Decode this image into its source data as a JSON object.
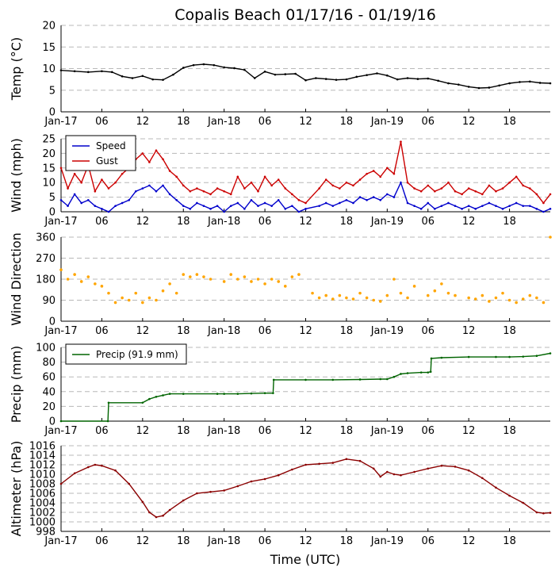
{
  "chart_data": {
    "title": "Copalis Beach 01/17/16 - 01/19/16",
    "xlabel": "Time (UTC)",
    "x_ticks": [
      "Jan-17",
      "06",
      "12",
      "18",
      "Jan-18",
      "06",
      "12",
      "18",
      "Jan-19",
      "06",
      "12",
      "18"
    ],
    "x_tick_hours": [
      0,
      6,
      12,
      18,
      24,
      30,
      36,
      42,
      48,
      54,
      60,
      66
    ],
    "x_range_hours": [
      0,
      72
    ],
    "panels": [
      {
        "id": "temp",
        "type": "line",
        "ylabel": "Temp (°C)",
        "ylim": [
          0,
          20
        ],
        "yticks": [
          0,
          5,
          10,
          15,
          20
        ],
        "grid": true,
        "series": [
          {
            "name": "Temp",
            "color": "#000000",
            "x": [
              0,
              2,
              4,
              6,
              7.5,
              9,
              10.5,
              12,
              13.5,
              15,
              16.5,
              18,
              19.5,
              21,
              22.5,
              24,
              25.5,
              27,
              28.5,
              30,
              31.5,
              33,
              34.5,
              36,
              37.5,
              39,
              40.5,
              42,
              43.5,
              45,
              46.5,
              48,
              49.5,
              51,
              52.5,
              54,
              55.5,
              57,
              58.5,
              60,
              61.5,
              63,
              64.5,
              66,
              67.5,
              69,
              70.5,
              72
            ],
            "y": [
              9.6,
              9.4,
              9.2,
              9.4,
              9.2,
              8.2,
              7.8,
              8.3,
              7.5,
              7.4,
              8.6,
              10.2,
              10.8,
              11.0,
              10.8,
              10.3,
              10.1,
              9.7,
              7.8,
              9.3,
              8.6,
              8.7,
              8.8,
              7.3,
              7.8,
              7.6,
              7.4,
              7.5,
              8.1,
              8.5,
              8.9,
              8.4,
              7.5,
              7.8,
              7.6,
              7.7,
              7.2,
              6.6,
              6.3,
              5.8,
              5.5,
              5.6,
              6.1,
              6.6,
              6.9,
              7.0,
              6.7,
              6.6
            ]
          }
        ]
      },
      {
        "id": "wind",
        "type": "line",
        "ylabel": "Wind (mph)",
        "ylim": [
          0,
          25
        ],
        "yticks": [
          0,
          5,
          10,
          15,
          20,
          25
        ],
        "grid": true,
        "legend": "top-left",
        "series": [
          {
            "name": "Speed",
            "color": "#0000cc",
            "x": [
              0,
              1,
              2,
              3,
              4,
              5,
              6,
              7,
              8,
              9,
              10,
              11,
              12,
              13,
              14,
              15,
              16,
              17,
              18,
              19,
              20,
              21,
              22,
              23,
              24,
              25,
              26,
              27,
              28,
              29,
              30,
              31,
              32,
              33,
              34,
              35,
              36,
              38,
              39,
              40,
              41,
              42,
              43,
              44,
              45,
              46,
              47,
              48,
              49,
              50,
              51,
              52,
              53,
              54,
              55,
              56,
              57,
              58,
              59,
              60,
              61,
              62,
              63,
              64,
              65,
              66,
              67,
              68,
              69,
              70,
              71,
              72
            ],
            "y": [
              4,
              2,
              6,
              3,
              4,
              2,
              1,
              0,
              2,
              3,
              4,
              7,
              8,
              9,
              7,
              9,
              6,
              4,
              2,
              1,
              3,
              2,
              1,
              2,
              0,
              2,
              3,
              1,
              4,
              2,
              3,
              2,
              4,
              1,
              2,
              0,
              1,
              2,
              3,
              2,
              3,
              4,
              3,
              5,
              4,
              5,
              4,
              6,
              5,
              10,
              3,
              2,
              1,
              3,
              1,
              2,
              3,
              2,
              1,
              2,
              1,
              2,
              3,
              2,
              1,
              2,
              3,
              2,
              2,
              1,
              0,
              1
            ]
          },
          {
            "name": "Gust",
            "color": "#cc0000",
            "x": [
              0,
              1,
              2,
              3,
              4,
              5,
              6,
              7,
              8,
              9,
              10,
              11,
              12,
              13,
              14,
              15,
              16,
              17,
              18,
              19,
              20,
              21,
              22,
              23,
              24,
              25,
              26,
              27,
              28,
              29,
              30,
              31,
              32,
              33,
              34,
              35,
              36,
              38,
              39,
              40,
              41,
              42,
              43,
              44,
              45,
              46,
              47,
              48,
              49,
              50,
              51,
              52,
              53,
              54,
              55,
              56,
              57,
              58,
              59,
              60,
              61,
              62,
              63,
              64,
              65,
              66,
              67,
              68,
              69,
              70,
              71,
              72
            ],
            "y": [
              15,
              8,
              13,
              10,
              16,
              7,
              11,
              8,
              10,
              13,
              15,
              18,
              20,
              17,
              21,
              18,
              14,
              12,
              9,
              7,
              8,
              7,
              6,
              8,
              7,
              6,
              12,
              8,
              10,
              7,
              12,
              9,
              11,
              8,
              6,
              4,
              3,
              8,
              11,
              9,
              8,
              10,
              9,
              11,
              13,
              14,
              12,
              15,
              13,
              24,
              10,
              8,
              7,
              9,
              7,
              8,
              10,
              7,
              6,
              8,
              7,
              6,
              9,
              7,
              8,
              10,
              12,
              9,
              8,
              6,
              3,
              6
            ]
          }
        ]
      },
      {
        "id": "wdir",
        "type": "scatter",
        "ylabel": "Wind Direction",
        "ylim": [
          0,
          360
        ],
        "yticks": [
          0,
          90,
          180,
          270,
          360
        ],
        "grid": true,
        "series": [
          {
            "name": "Direction",
            "color": "#ffa500",
            "x": [
              0,
              1,
              2,
              3,
              4,
              5,
              6,
              7,
              8,
              9,
              10,
              11,
              12,
              13,
              14,
              15,
              16,
              17,
              18,
              19,
              20,
              21,
              22,
              24,
              25,
              26,
              27,
              28,
              29,
              30,
              31,
              32,
              33,
              34,
              35,
              37,
              38,
              39,
              40,
              41,
              42,
              43,
              44,
              45,
              46,
              47,
              48,
              49,
              50,
              51,
              52,
              54,
              55,
              56,
              57,
              58,
              60,
              61,
              62,
              63,
              64,
              65,
              66,
              67,
              68,
              69,
              70,
              71,
              72
            ],
            "y": [
              220,
              180,
              200,
              170,
              190,
              160,
              150,
              120,
              80,
              100,
              90,
              120,
              80,
              100,
              90,
              130,
              160,
              120,
              200,
              190,
              200,
              190,
              180,
              170,
              200,
              180,
              190,
              170,
              180,
              160,
              180,
              170,
              150,
              190,
              200,
              120,
              100,
              110,
              95,
              110,
              100,
              95,
              120,
              100,
              90,
              85,
              110,
              180,
              120,
              100,
              150,
              110,
              130,
              160,
              120,
              110,
              100,
              95,
              110,
              85,
              100,
              120,
              90,
              80,
              95,
              110,
              100,
              80,
              360
            ]
          }
        ]
      },
      {
        "id": "precip",
        "type": "line",
        "ylabel": "Precip (mm)",
        "ylim": [
          0,
          100
        ],
        "yticks": [
          0,
          20,
          40,
          60,
          80,
          100
        ],
        "grid": true,
        "legend": "top-left",
        "series": [
          {
            "name": "Precip (91.9 mm)",
            "color": "#006400",
            "x": [
              0,
              6.9,
              7.0,
              12,
              13,
              14,
              15,
              16,
              18,
              23,
              24,
              26,
              28,
              30,
              31.2,
              31.3,
              36,
              40,
              44,
              47,
              48,
              49,
              50,
              51,
              53,
              54,
              54.4,
              54.5,
              56,
              60,
              64,
              66,
              68,
              70,
              72
            ],
            "y": [
              0,
              0,
              25,
              25,
              30,
              33,
              35,
              37,
              37,
              37,
              37,
              37,
              37.5,
              38,
              38,
              56,
              56,
              56,
              56.5,
              57,
              57,
              60,
              64,
              65,
              66,
              66,
              67,
              85,
              86,
              87,
              87,
              87,
              87.5,
              88.5,
              91.9
            ]
          }
        ]
      },
      {
        "id": "altimeter",
        "type": "line",
        "ylabel": "Altimeter (hPa)",
        "ylim": [
          998,
          1016
        ],
        "yticks": [
          998,
          1000,
          1002,
          1004,
          1006,
          1008,
          1010,
          1012,
          1014,
          1016
        ],
        "grid": true,
        "series": [
          {
            "name": "Altimeter",
            "color": "#8b0000",
            "x": [
              0,
              2,
              4,
              5,
              6,
              8,
              10,
              12,
              13,
              14,
              15,
              16,
              18,
              20,
              22,
              24,
              26,
              28,
              30,
              32,
              34,
              36,
              38,
              40,
              42,
              44,
              46,
              47,
              48,
              49,
              50,
              52,
              54,
              56,
              58,
              60,
              62,
              64,
              66,
              68,
              70,
              71,
              72
            ],
            "y": [
              1008,
              1010.2,
              1011.5,
              1012,
              1011.8,
              1010.8,
              1008,
              1004.2,
              1002,
              1001,
              1001.3,
              1002.5,
              1004.5,
              1006,
              1006.3,
              1006.6,
              1007.5,
              1008.5,
              1009,
              1009.8,
              1011,
              1012,
              1012.2,
              1012.4,
              1013.2,
              1012.8,
              1011.2,
              1009.5,
              1010.5,
              1010,
              1009.8,
              1010.5,
              1011.2,
              1011.8,
              1011.6,
              1010.8,
              1009.2,
              1007.2,
              1005.5,
              1004,
              1002,
              1001.8,
              1001.9
            ]
          }
        ]
      }
    ]
  }
}
